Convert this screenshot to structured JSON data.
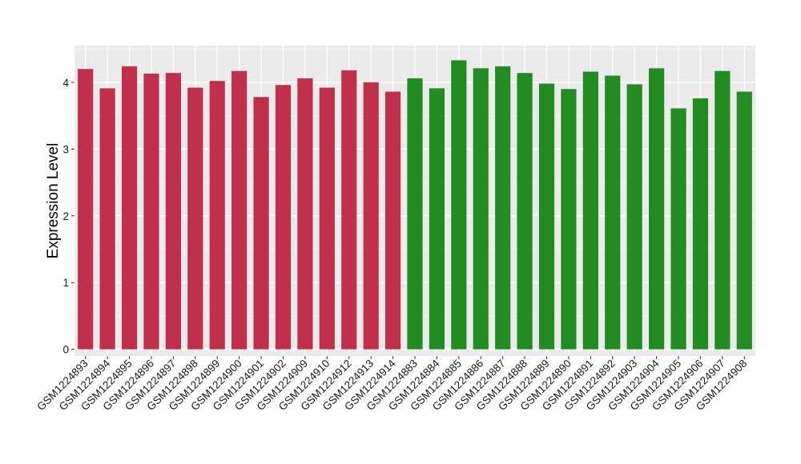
{
  "chart_data": {
    "type": "bar",
    "title": "",
    "xlabel": "",
    "ylabel": "Expression Level",
    "ylim": [
      -0.1,
      4.55
    ],
    "yticks": [
      0,
      1,
      2,
      3,
      4
    ],
    "grid": true,
    "panel_color": "#ebebeb",
    "categories": [
      "GSM1224893",
      "GSM1224894",
      "GSM1224895",
      "GSM1224896",
      "GSM1224897",
      "GSM1224898",
      "GSM1224899",
      "GSM1224900",
      "GSM1224901",
      "GSM1224902",
      "GSM1224909",
      "GSM1224910",
      "GSM1224912",
      "GSM1224913",
      "GSM1224914",
      "GSM1224883",
      "GSM1224884",
      "GSM1224885",
      "GSM1224886",
      "GSM1224887",
      "GSM1224888",
      "GSM1224889",
      "GSM1224890",
      "GSM1224891",
      "GSM1224892",
      "GSM1224903",
      "GSM1224904",
      "GSM1224905",
      "GSM1224906",
      "GSM1224907",
      "GSM1224908"
    ],
    "values": [
      4.2,
      3.91,
      4.24,
      4.13,
      4.14,
      3.92,
      4.02,
      4.17,
      3.78,
      3.96,
      4.06,
      3.92,
      4.18,
      4.0,
      3.86,
      4.06,
      3.91,
      4.33,
      4.21,
      4.24,
      4.14,
      3.98,
      3.9,
      4.16,
      4.1,
      3.97,
      4.21,
      3.61,
      3.76,
      4.17,
      3.86
    ],
    "bar_colors": [
      "#c0304a",
      "#c0304a",
      "#c0304a",
      "#c0304a",
      "#c0304a",
      "#c0304a",
      "#c0304a",
      "#c0304a",
      "#c0304a",
      "#c0304a",
      "#c0304a",
      "#c0304a",
      "#c0304a",
      "#c0304a",
      "#c0304a",
      "#228b22",
      "#228b22",
      "#228b22",
      "#228b22",
      "#228b22",
      "#228b22",
      "#228b22",
      "#228b22",
      "#228b22",
      "#228b22",
      "#228b22",
      "#228b22",
      "#228b22",
      "#228b22",
      "#228b22",
      "#228b22"
    ]
  }
}
